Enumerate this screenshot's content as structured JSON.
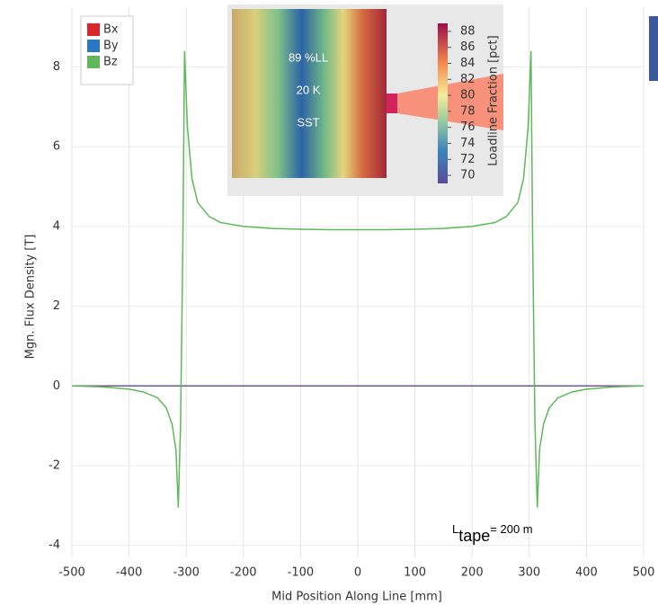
{
  "chart_data": {
    "type": "line",
    "x_label": "Mid Position Along Line [mm]",
    "y_label": "Mgn. Flux Density [T]",
    "x": [
      -500,
      -450,
      -400,
      -375,
      -350,
      -335,
      -325,
      -318,
      -314,
      -310,
      -306,
      -303,
      -298,
      -290,
      -280,
      -260,
      -240,
      -200,
      -150,
      -100,
      -50,
      0,
      50,
      100,
      150,
      200,
      240,
      260,
      280,
      290,
      298,
      303,
      306,
      310,
      314,
      318,
      325,
      335,
      350,
      375,
      400,
      450,
      500
    ],
    "series": [
      {
        "name": "Bx",
        "color": "#d9262b",
        "values": [
          0,
          0,
          0,
          0,
          0,
          0,
          0,
          0,
          0,
          0,
          0,
          0,
          0,
          0,
          0,
          0,
          0,
          0,
          0,
          0,
          0,
          0,
          0,
          0,
          0,
          0,
          0,
          0,
          0,
          0,
          0,
          0,
          0,
          0,
          0,
          0,
          0,
          0,
          0,
          0,
          0,
          0,
          0
        ]
      },
      {
        "name": "By",
        "color": "#2a78c2",
        "values": [
          0,
          0,
          0,
          0,
          0,
          0,
          0,
          0,
          0,
          0,
          0,
          0,
          0,
          0,
          0,
          0,
          0,
          0,
          0,
          0,
          0,
          0,
          0,
          0,
          0,
          0,
          0,
          0,
          0,
          0,
          0,
          0,
          0,
          0,
          0,
          0,
          0,
          0,
          0,
          0,
          0,
          0,
          0
        ]
      },
      {
        "name": "Bz",
        "color": "#5fb85a",
        "values": [
          0,
          -0.02,
          -0.08,
          -0.15,
          -0.3,
          -0.55,
          -0.95,
          -1.6,
          -3.05,
          -1.0,
          3.5,
          8.4,
          6.5,
          5.2,
          4.6,
          4.25,
          4.1,
          4.0,
          3.95,
          3.93,
          3.92,
          3.92,
          3.92,
          3.93,
          3.95,
          4.0,
          4.1,
          4.25,
          4.6,
          5.2,
          6.5,
          8.4,
          3.5,
          -1.0,
          -3.05,
          -1.6,
          -0.95,
          -0.55,
          -0.3,
          -0.15,
          -0.08,
          -0.02,
          0
        ]
      }
    ],
    "xlim": [
      -500,
      500
    ],
    "ylim": [
      -4.3,
      9.5
    ],
    "xticks": [
      -500,
      -400,
      -300,
      -200,
      -100,
      0,
      100,
      200,
      300,
      400,
      500
    ],
    "yticks": [
      -4,
      -2,
      0,
      2,
      4,
      6,
      8
    ],
    "grid": true,
    "legend": "upper left",
    "annotation": [
      "L",
      "tape",
      "= 200 m"
    ],
    "inset": {
      "labels": [
        "89 %LL",
        "20 K",
        "SST"
      ],
      "colorbar_label": "Loadline Fraction [pct]",
      "clim": [
        69,
        89
      ],
      "colorbar_ticks": [
        70,
        72,
        74,
        76,
        78,
        80,
        82,
        84,
        86,
        88
      ]
    }
  }
}
